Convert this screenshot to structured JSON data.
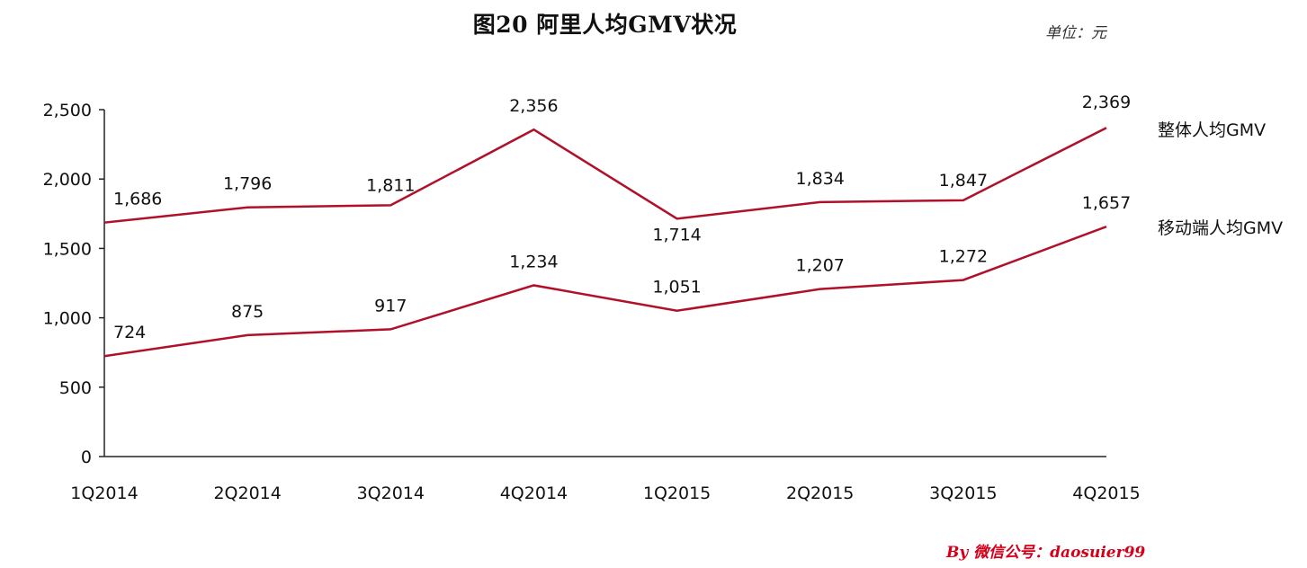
{
  "page": {
    "title": "图20 阿里人均GMV状况",
    "unit_label": "单位：元",
    "watermark": "By 微信公号：daosuier99"
  },
  "chart_data": {
    "type": "line",
    "title": "图20 阿里人均GMV状况",
    "xlabel": "",
    "ylabel": "",
    "categories": [
      "1Q2014",
      "2Q2014",
      "3Q2014",
      "4Q2014",
      "1Q2015",
      "2Q2015",
      "3Q2015",
      "4Q2015"
    ],
    "ylim": [
      0,
      2500
    ],
    "yticks": [
      0,
      500,
      1000,
      1500,
      2000,
      2500
    ],
    "ytick_labels": [
      "0",
      "500",
      "1,000",
      "1,500",
      "2,000",
      "2,500"
    ],
    "grid": false,
    "legend": "series names labeled at right end of lines",
    "line_color": "#b0102a",
    "series": [
      {
        "name": "整体人均GMV",
        "values": [
          1686,
          1796,
          1811,
          2356,
          1714,
          1834,
          1847,
          2369
        ],
        "labels": [
          "1,686",
          "1,796",
          "1,811",
          "2,356",
          "1,714",
          "1,834",
          "1,847",
          "2,369"
        ]
      },
      {
        "name": "移动端人均GMV",
        "values": [
          724,
          875,
          917,
          1234,
          1051,
          1207,
          1272,
          1657
        ],
        "labels": [
          "724",
          "875",
          "917",
          "1,234",
          "1,051",
          "1,207",
          "1,272",
          "1,657"
        ]
      }
    ]
  }
}
